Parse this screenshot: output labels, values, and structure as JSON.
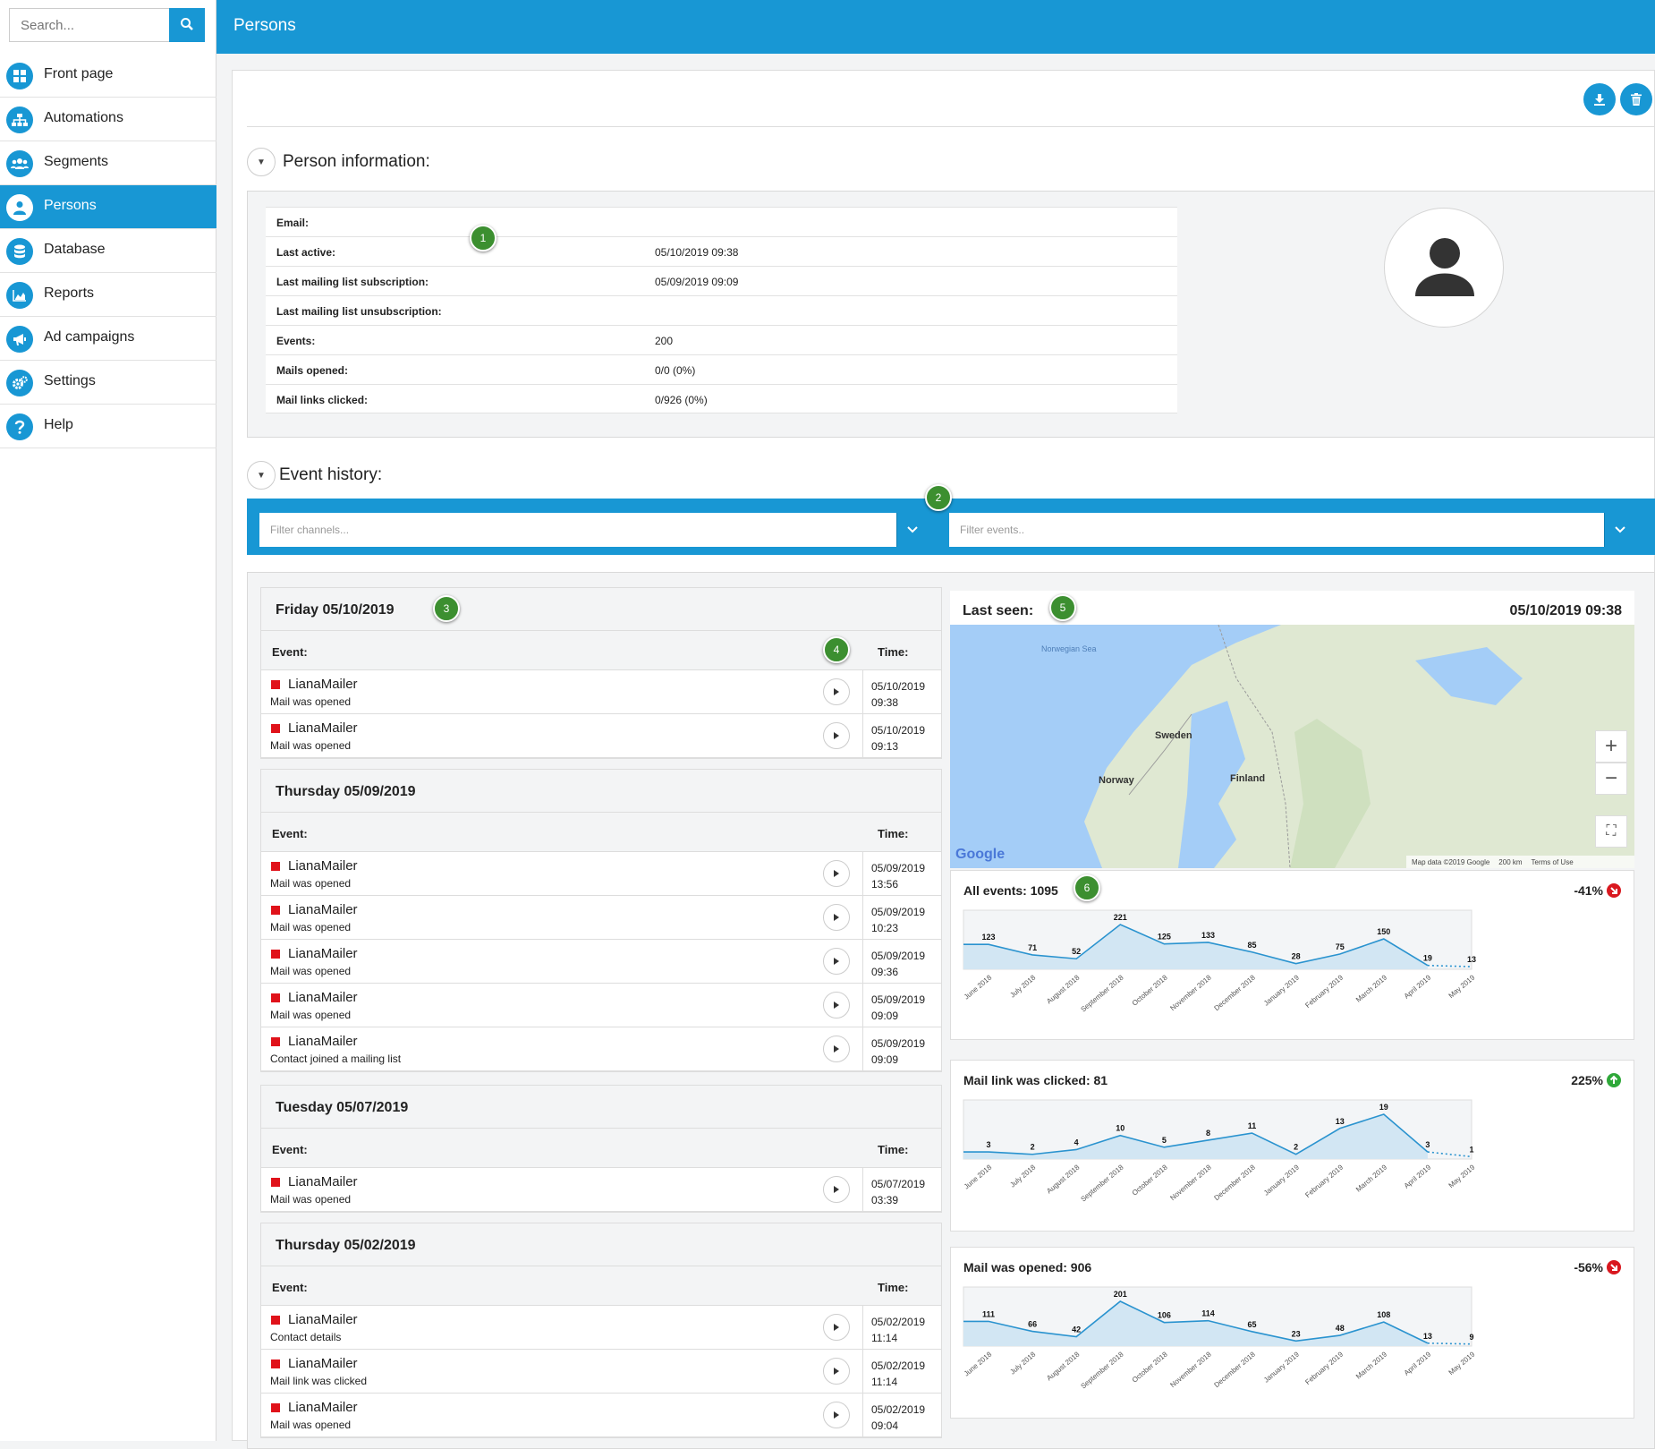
{
  "search": {
    "placeholder": "Search..."
  },
  "nav": [
    {
      "label": "Front page",
      "icon": "grid-icon"
    },
    {
      "label": "Automations",
      "icon": "sitemap-icon"
    },
    {
      "label": "Segments",
      "icon": "users-icon"
    },
    {
      "label": "Persons",
      "icon": "person-icon",
      "active": true
    },
    {
      "label": "Database",
      "icon": "database-icon"
    },
    {
      "label": "Reports",
      "icon": "chart-icon"
    },
    {
      "label": "Ad campaigns",
      "icon": "megaphone-icon"
    },
    {
      "label": "Settings",
      "icon": "gears-icon"
    },
    {
      "label": "Help",
      "icon": "question-icon"
    }
  ],
  "header": {
    "title": "Persons"
  },
  "person": {
    "title": "Person information:",
    "rows": [
      {
        "label": "Email:",
        "value": ""
      },
      {
        "label": "Last active:",
        "value": "05/10/2019 09:38"
      },
      {
        "label": "Last mailing list subscription:",
        "value": "05/09/2019 09:09"
      },
      {
        "label": "Last mailing list unsubscription:",
        "value": ""
      },
      {
        "label": "Events:",
        "value": "200"
      },
      {
        "label": "Mails opened:",
        "value": "0/0 (0%)"
      },
      {
        "label": "Mail links clicked:",
        "value": "0/926 (0%)"
      }
    ]
  },
  "history": {
    "title": "Event history:",
    "filter_channels": "Filter channels...",
    "filter_events": "Filter events..",
    "event_col": "Event:",
    "time_col": "Time:",
    "days": [
      {
        "date": "Friday 05/10/2019",
        "events": [
          {
            "source": "LianaMailer",
            "desc": "Mail was opened",
            "date": "05/10/2019",
            "time": "09:38"
          },
          {
            "source": "LianaMailer",
            "desc": "Mail was opened",
            "date": "05/10/2019",
            "time": "09:13"
          }
        ]
      },
      {
        "date": "Thursday 05/09/2019",
        "events": [
          {
            "source": "LianaMailer",
            "desc": "Mail was opened",
            "date": "05/09/2019",
            "time": "13:56"
          },
          {
            "source": "LianaMailer",
            "desc": "Mail was opened",
            "date": "05/09/2019",
            "time": "10:23"
          },
          {
            "source": "LianaMailer",
            "desc": "Mail was opened",
            "date": "05/09/2019",
            "time": "09:36"
          },
          {
            "source": "LianaMailer",
            "desc": "Mail was opened",
            "date": "05/09/2019",
            "time": "09:09"
          },
          {
            "source": "LianaMailer",
            "desc": "Contact joined a mailing list",
            "date": "05/09/2019",
            "time": "09:09"
          }
        ]
      },
      {
        "date": "Tuesday 05/07/2019",
        "events": [
          {
            "source": "LianaMailer",
            "desc": "Mail was opened",
            "date": "05/07/2019",
            "time": "03:39"
          }
        ]
      },
      {
        "date": "Thursday 05/02/2019",
        "events": [
          {
            "source": "LianaMailer",
            "desc": "Contact details",
            "date": "05/02/2019",
            "time": "11:14"
          },
          {
            "source": "LianaMailer",
            "desc": "Mail link was clicked",
            "date": "05/02/2019",
            "time": "11:14"
          },
          {
            "source": "LianaMailer",
            "desc": "Mail was opened",
            "date": "05/02/2019",
            "time": "09:04"
          }
        ]
      }
    ]
  },
  "last_seen": {
    "label": "Last seen:",
    "value": "05/10/2019 09:38",
    "map": {
      "places": [
        "Norwegian Sea",
        "Sweden",
        "Norway",
        "Finland"
      ],
      "logo": "Google",
      "attribution": "Map data ©2019 Google",
      "scale": "200 km",
      "terms": "Terms of Use"
    }
  },
  "badges": [
    "1",
    "2",
    "3",
    "4",
    "5",
    "6"
  ],
  "months": [
    "June 2018",
    "July 2018",
    "August 2018",
    "September 2018",
    "October 2018",
    "November 2018",
    "December 2018",
    "January 2019",
    "February 2019",
    "March 2019",
    "April 2019",
    "May 2019"
  ],
  "charts": [
    {
      "title": "All events: 1095",
      "change": "-41%",
      "direction": "down",
      "values": [
        123,
        71,
        52,
        221,
        125,
        133,
        85,
        28,
        75,
        150,
        19,
        13
      ]
    },
    {
      "title": "Mail link was clicked: 81",
      "change": "225%",
      "direction": "up",
      "values": [
        3,
        2,
        4,
        10,
        5,
        8,
        11,
        2,
        13,
        19,
        3,
        1
      ]
    },
    {
      "title": "Mail was opened: 906",
      "change": "-56%",
      "direction": "down",
      "values": [
        111,
        66,
        42,
        201,
        106,
        114,
        65,
        23,
        48,
        108,
        13,
        9
      ]
    }
  ],
  "chart_data": [
    {
      "type": "area",
      "title": "All events: 1095",
      "categories": [
        "June 2018",
        "July 2018",
        "August 2018",
        "September 2018",
        "October 2018",
        "November 2018",
        "December 2018",
        "January 2019",
        "February 2019",
        "March 2019",
        "April 2019",
        "May 2019"
      ],
      "values": [
        123,
        71,
        52,
        221,
        125,
        133,
        85,
        28,
        75,
        150,
        19,
        13
      ],
      "annotation": "-41%"
    },
    {
      "type": "area",
      "title": "Mail link was clicked: 81",
      "categories": [
        "June 2018",
        "July 2018",
        "August 2018",
        "September 2018",
        "October 2018",
        "November 2018",
        "December 2018",
        "January 2019",
        "February 2019",
        "March 2019",
        "April 2019",
        "May 2019"
      ],
      "values": [
        3,
        2,
        4,
        10,
        5,
        8,
        11,
        2,
        13,
        19,
        3,
        1
      ],
      "annotation": "225%"
    },
    {
      "type": "area",
      "title": "Mail was opened: 906",
      "categories": [
        "June 2018",
        "July 2018",
        "August 2018",
        "September 2018",
        "October 2018",
        "November 2018",
        "December 2018",
        "January 2019",
        "February 2019",
        "March 2019",
        "April 2019",
        "May 2019"
      ],
      "values": [
        111,
        66,
        42,
        201,
        106,
        114,
        65,
        23,
        48,
        108,
        13,
        9
      ],
      "annotation": "-56%"
    }
  ],
  "colors": {
    "brand": "#1897d4",
    "badge": "#3c8f30",
    "event_marker": "#e0121a",
    "down": "#d9181f",
    "up": "#2fa83a"
  }
}
